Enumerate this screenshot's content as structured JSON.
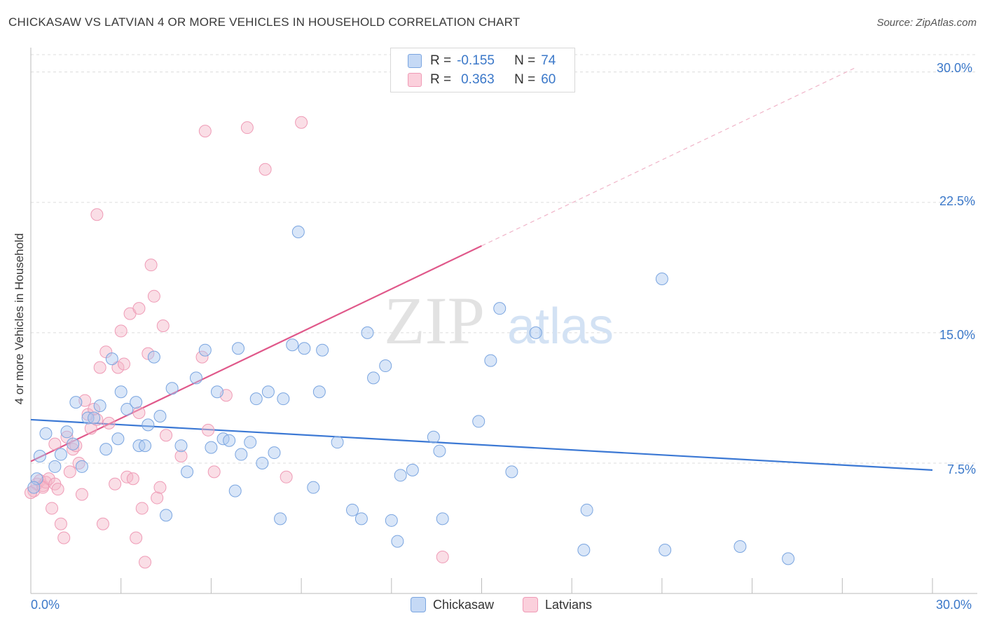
{
  "title": "CHICKASAW VS LATVIAN 4 OR MORE VEHICLES IN HOUSEHOLD CORRELATION CHART",
  "source": "Source: ZipAtlas.com",
  "watermark": {
    "zip": "ZIP",
    "atlas": "atlas"
  },
  "legend_top": {
    "rows": [
      {
        "r_label": "R =",
        "r_value": "-0.155",
        "n_label": "N =",
        "n_value": "74",
        "color": "#aac8f0"
      },
      {
        "r_label": "R =",
        "r_value": "0.363",
        "n_label": "N =",
        "n_value": "60",
        "color": "#f5b5c8"
      }
    ]
  },
  "legend_bottom": {
    "series1": "Chickasaw",
    "series2": "Latvians"
  },
  "x_axis": {
    "min_label": "0.0%",
    "max_label": "30.0%"
  },
  "y_axis": {
    "label": "4 or more Vehicles in Household",
    "ticks": [
      "7.5%",
      "15.0%",
      "22.5%",
      "30.0%"
    ]
  },
  "colors": {
    "blue": "#3b78d4",
    "blue_fill": "#aac8f0",
    "pink": "#e0588a",
    "pink_fill": "#f5b5c8",
    "axis_text": "#3b78c9"
  },
  "chart_data": {
    "type": "scatter",
    "title": "CHICKASAW VS LATVIAN 4 OR MORE VEHICLES IN HOUSEHOLD CORRELATION CHART",
    "xlabel": "",
    "ylabel": "4 or more Vehicles in Household",
    "xlim": [
      0,
      30
    ],
    "ylim": [
      0,
      31
    ],
    "y_ticks": [
      7.5,
      15.0,
      22.5,
      30.0
    ],
    "grid": true,
    "legend": "top-center",
    "series": [
      {
        "name": "Chickasaw",
        "color": "#3b78d4",
        "r": -0.155,
        "n": 74,
        "trend": {
          "x": [
            0,
            30
          ],
          "y": [
            10.0,
            7.1
          ]
        },
        "points": [
          [
            0.2,
            6.6
          ],
          [
            0.3,
            7.9
          ],
          [
            0.5,
            9.2
          ],
          [
            0.8,
            7.3
          ],
          [
            1.0,
            8.0
          ],
          [
            1.2,
            9.3
          ],
          [
            1.4,
            8.6
          ],
          [
            1.5,
            11.0
          ],
          [
            1.7,
            7.3
          ],
          [
            1.9,
            10.1
          ],
          [
            2.1,
            10.1
          ],
          [
            2.3,
            10.8
          ],
          [
            2.5,
            8.3
          ],
          [
            2.7,
            13.5
          ],
          [
            2.9,
            8.9
          ],
          [
            3.0,
            11.6
          ],
          [
            3.2,
            10.6
          ],
          [
            3.5,
            11.0
          ],
          [
            3.6,
            8.5
          ],
          [
            3.8,
            8.5
          ],
          [
            3.9,
            9.7
          ],
          [
            4.1,
            13.6
          ],
          [
            4.3,
            10.2
          ],
          [
            4.5,
            4.5
          ],
          [
            4.7,
            11.8
          ],
          [
            5.0,
            8.5
          ],
          [
            5.2,
            7.0
          ],
          [
            5.5,
            12.4
          ],
          [
            5.8,
            14.0
          ],
          [
            6.0,
            8.4
          ],
          [
            6.2,
            11.6
          ],
          [
            6.4,
            8.9
          ],
          [
            6.6,
            8.8
          ],
          [
            6.8,
            5.9
          ],
          [
            6.9,
            14.1
          ],
          [
            7.0,
            8.0
          ],
          [
            7.3,
            8.7
          ],
          [
            7.5,
            11.2
          ],
          [
            7.7,
            7.5
          ],
          [
            7.9,
            11.6
          ],
          [
            8.1,
            8.1
          ],
          [
            8.3,
            4.3
          ],
          [
            8.4,
            11.2
          ],
          [
            8.7,
            14.3
          ],
          [
            8.9,
            20.8
          ],
          [
            9.1,
            14.1
          ],
          [
            9.4,
            6.1
          ],
          [
            9.6,
            11.6
          ],
          [
            9.7,
            14.0
          ],
          [
            10.2,
            8.7
          ],
          [
            10.7,
            4.8
          ],
          [
            11.0,
            4.3
          ],
          [
            11.2,
            15.0
          ],
          [
            11.4,
            12.4
          ],
          [
            11.8,
            13.1
          ],
          [
            12.0,
            4.2
          ],
          [
            12.2,
            3.0
          ],
          [
            12.3,
            6.8
          ],
          [
            12.7,
            7.1
          ],
          [
            13.4,
            9.0
          ],
          [
            13.6,
            8.2
          ],
          [
            13.7,
            4.3
          ],
          [
            14.9,
            9.9
          ],
          [
            15.3,
            13.4
          ],
          [
            15.6,
            16.4
          ],
          [
            16.0,
            7.0
          ],
          [
            16.8,
            15.0
          ],
          [
            18.4,
            2.5
          ],
          [
            18.5,
            4.8
          ],
          [
            21.0,
            18.1
          ],
          [
            21.1,
            2.5
          ],
          [
            23.6,
            2.7
          ],
          [
            25.2,
            2.0
          ],
          [
            0.1,
            6.1
          ]
        ]
      },
      {
        "name": "Latvians",
        "color": "#e0588a",
        "r": 0.363,
        "n": 60,
        "trend": {
          "x": [
            0,
            15
          ],
          "y": [
            7.6,
            20.0
          ]
        },
        "trend_dashed": {
          "x": [
            15,
            27.5
          ],
          "y": [
            20.0,
            30.3
          ]
        },
        "points": [
          [
            0.1,
            5.9
          ],
          [
            0.2,
            6.3
          ],
          [
            0.3,
            6.5
          ],
          [
            0.4,
            6.2
          ],
          [
            0.5,
            6.4
          ],
          [
            0.6,
            6.6
          ],
          [
            0.7,
            4.9
          ],
          [
            0.8,
            6.3
          ],
          [
            0.8,
            8.6
          ],
          [
            0.9,
            6.0
          ],
          [
            1.0,
            4.0
          ],
          [
            1.1,
            3.2
          ],
          [
            1.2,
            9.0
          ],
          [
            1.3,
            7.0
          ],
          [
            1.4,
            8.3
          ],
          [
            1.5,
            8.5
          ],
          [
            1.6,
            7.5
          ],
          [
            1.7,
            5.7
          ],
          [
            1.8,
            11.1
          ],
          [
            1.9,
            10.3
          ],
          [
            2.0,
            9.5
          ],
          [
            2.1,
            10.6
          ],
          [
            2.2,
            10.0
          ],
          [
            2.3,
            13.0
          ],
          [
            2.4,
            4.0
          ],
          [
            2.5,
            13.9
          ],
          [
            2.6,
            9.8
          ],
          [
            2.8,
            6.3
          ],
          [
            2.9,
            13.0
          ],
          [
            3.0,
            15.1
          ],
          [
            3.1,
            13.2
          ],
          [
            3.2,
            6.7
          ],
          [
            3.3,
            16.1
          ],
          [
            3.4,
            6.6
          ],
          [
            3.5,
            3.2
          ],
          [
            3.6,
            16.4
          ],
          [
            3.6,
            10.4
          ],
          [
            3.7,
            4.9
          ],
          [
            3.8,
            1.8
          ],
          [
            3.9,
            13.8
          ],
          [
            4.0,
            18.9
          ],
          [
            4.1,
            17.1
          ],
          [
            4.2,
            5.5
          ],
          [
            4.3,
            6.1
          ],
          [
            4.4,
            15.4
          ],
          [
            4.5,
            9.1
          ],
          [
            5.0,
            7.9
          ],
          [
            5.7,
            13.6
          ],
          [
            5.8,
            26.6
          ],
          [
            5.9,
            9.4
          ],
          [
            6.1,
            7.0
          ],
          [
            6.5,
            11.4
          ],
          [
            7.2,
            26.8
          ],
          [
            7.8,
            24.4
          ],
          [
            8.5,
            6.7
          ],
          [
            9.0,
            27.1
          ],
          [
            13.7,
            2.1
          ],
          [
            2.2,
            21.8
          ],
          [
            0.0,
            5.8
          ],
          [
            0.4,
            6.1
          ]
        ]
      }
    ]
  }
}
